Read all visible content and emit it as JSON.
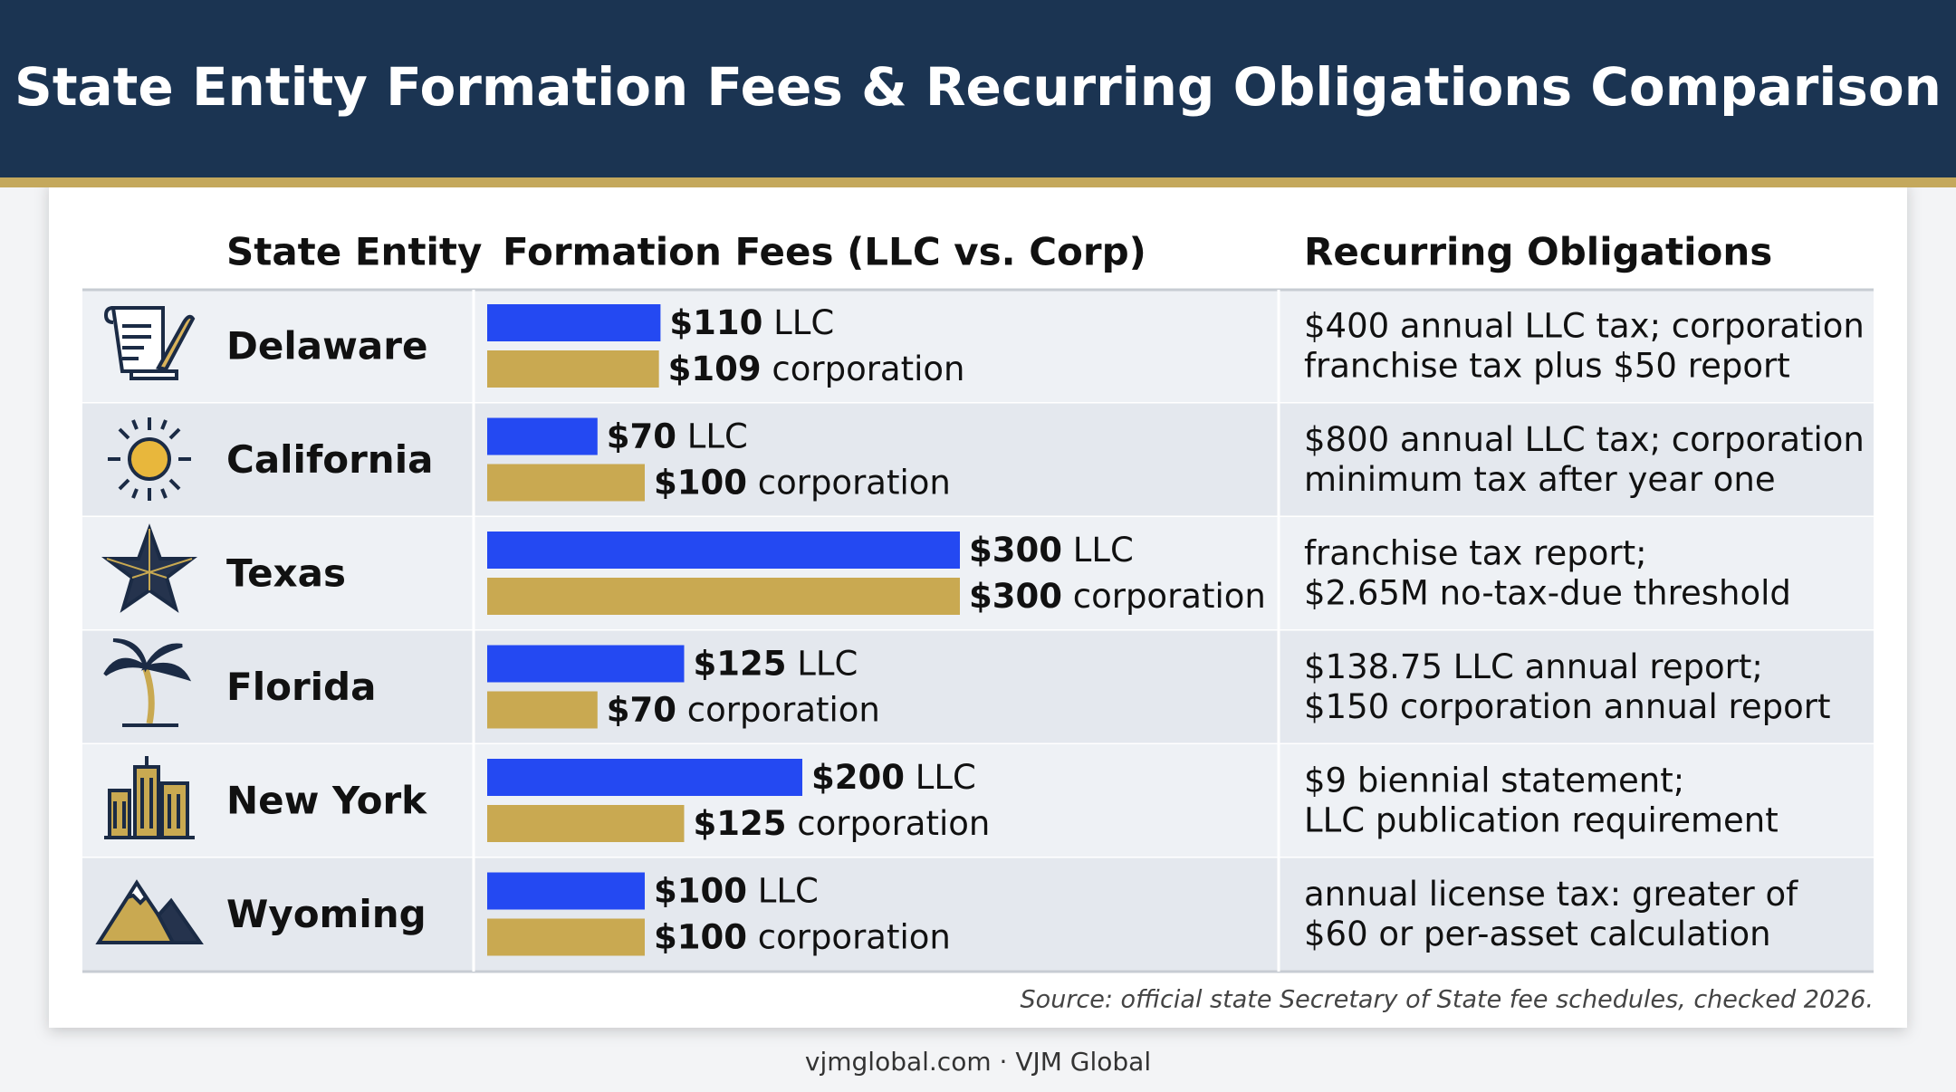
{
  "header": {
    "title": "State Entity Formation Fees & Recurring Obligations Comparison"
  },
  "table": {
    "headers": [
      "State Entity",
      "Formation Fees (LLC vs. Corp)",
      "Recurring Obligations"
    ],
    "recurring_obligations": [
      [
        "$400 annual LLC tax; corporation",
        "franchise tax plus $50 report"
      ],
      [
        "$800 annual LLC tax; corporation",
        "minimum tax after year one"
      ],
      [
        "franchise tax report;",
        "$2.65M no-tax-due threshold"
      ],
      [
        "$138.75 LLC annual report;",
        "$150 corporation annual report"
      ],
      [
        "$9 biennial statement;",
        "LLC publication requirement"
      ],
      [
        "annual license tax: greater of",
        "$60 or per-asset calculation"
      ]
    ]
  },
  "chart_data": {
    "type": "bar",
    "orientation": "horizontal",
    "categories": [
      "Delaware",
      "California",
      "Texas",
      "Florida",
      "New York",
      "Wyoming"
    ],
    "series": [
      {
        "name": "LLC",
        "color": "#2449f2",
        "values": [
          110,
          70,
          300,
          125,
          200,
          100
        ],
        "value_labels": [
          "$110",
          "$70",
          "$300",
          "$125",
          "$200",
          "$100"
        ]
      },
      {
        "name": "corporation",
        "color": "#c9a951",
        "values": [
          109,
          100,
          300,
          70,
          125,
          100
        ],
        "value_labels": [
          "$109",
          "$100",
          "$300",
          "$70",
          "$125",
          "$100"
        ]
      }
    ]
  },
  "source": "Source: official state Secretary of State fee schedules, checked 2026.",
  "footer": "vjmglobal.com · VJM Global"
}
